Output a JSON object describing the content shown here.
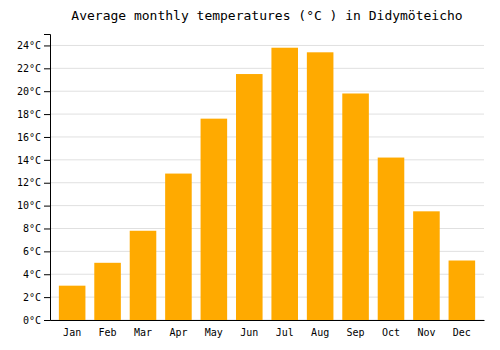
{
  "chart_data": {
    "type": "bar",
    "title": "Average monthly temperatures (°C ) in Didymöteicho",
    "categories": [
      "Jan",
      "Feb",
      "Mar",
      "Apr",
      "May",
      "Jun",
      "Jul",
      "Aug",
      "Sep",
      "Oct",
      "Nov",
      "Dec"
    ],
    "values": [
      3.0,
      5.0,
      7.8,
      12.8,
      17.6,
      21.5,
      23.8,
      23.4,
      19.8,
      14.2,
      9.5,
      5.2
    ],
    "color": "#FFAA00",
    "ylim": [
      0,
      25
    ],
    "yticks": [
      {
        "value": 0,
        "label": "0°C"
      },
      {
        "value": 2,
        "label": "2°C"
      },
      {
        "value": 4,
        "label": "4°C"
      },
      {
        "value": 6,
        "label": "6°C"
      },
      {
        "value": 8,
        "label": "8°C"
      },
      {
        "value": 10,
        "label": "10°C"
      },
      {
        "value": 12,
        "label": "12°C"
      },
      {
        "value": 14,
        "label": "14°C"
      },
      {
        "value": 16,
        "label": "16°C"
      },
      {
        "value": 18,
        "label": "18°C"
      },
      {
        "value": 20,
        "label": "20°C"
      },
      {
        "value": 22,
        "label": "22°C"
      },
      {
        "value": 24,
        "label": "24°C"
      }
    ],
    "grid": true
  }
}
